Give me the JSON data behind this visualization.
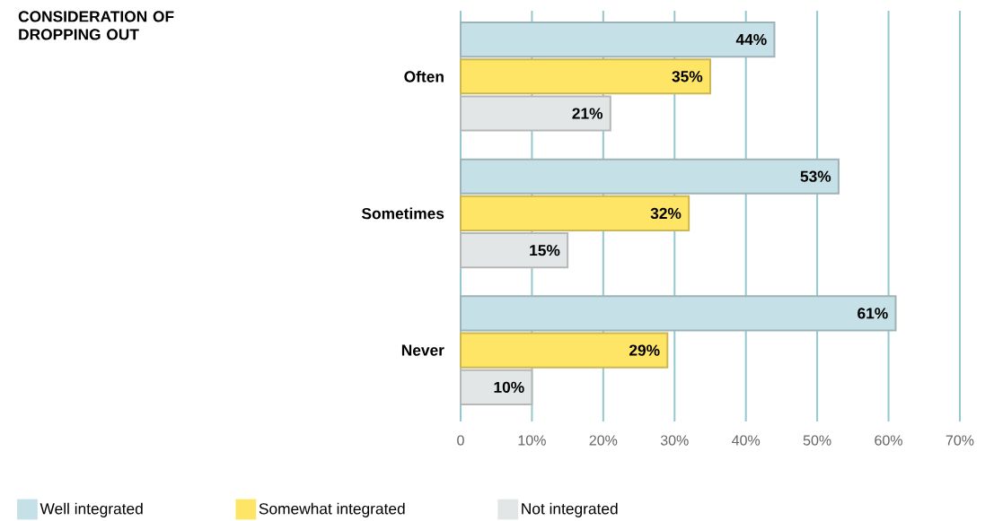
{
  "chart_data": {
    "type": "bar",
    "orientation": "horizontal",
    "title": "CONSIDERATION OF DROPPING OUT",
    "categories": [
      "Often",
      "Sometimes",
      "Never"
    ],
    "series": [
      {
        "name": "Well integrated",
        "color": "#c5e0e6",
        "values": [
          44,
          53,
          61
        ],
        "value_labels": [
          "44%",
          "53%",
          "61%"
        ]
      },
      {
        "name": "Somewhat integrated",
        "color": "#ffe566",
        "values": [
          35,
          32,
          29
        ],
        "value_labels": [
          "35%",
          "32%",
          "29%"
        ]
      },
      {
        "name": "Not integrated",
        "color": "#e3e6e6",
        "values": [
          21,
          15,
          10
        ],
        "value_labels": [
          "21%",
          "15%",
          "10%"
        ]
      }
    ],
    "xlim": [
      0,
      70
    ],
    "xticks": [
      0,
      {
        "value": 10,
        "label": "10%"
      },
      {
        "value": 20,
        "label": "20%"
      },
      {
        "value": 30,
        "label": "30%"
      },
      {
        "value": 40,
        "label": "40%"
      },
      {
        "value": 50,
        "label": "50%"
      },
      {
        "value": 60,
        "label": "60%"
      },
      {
        "value": 70,
        "label": "70%"
      }
    ],
    "grid": "x",
    "legend": "bottom"
  }
}
